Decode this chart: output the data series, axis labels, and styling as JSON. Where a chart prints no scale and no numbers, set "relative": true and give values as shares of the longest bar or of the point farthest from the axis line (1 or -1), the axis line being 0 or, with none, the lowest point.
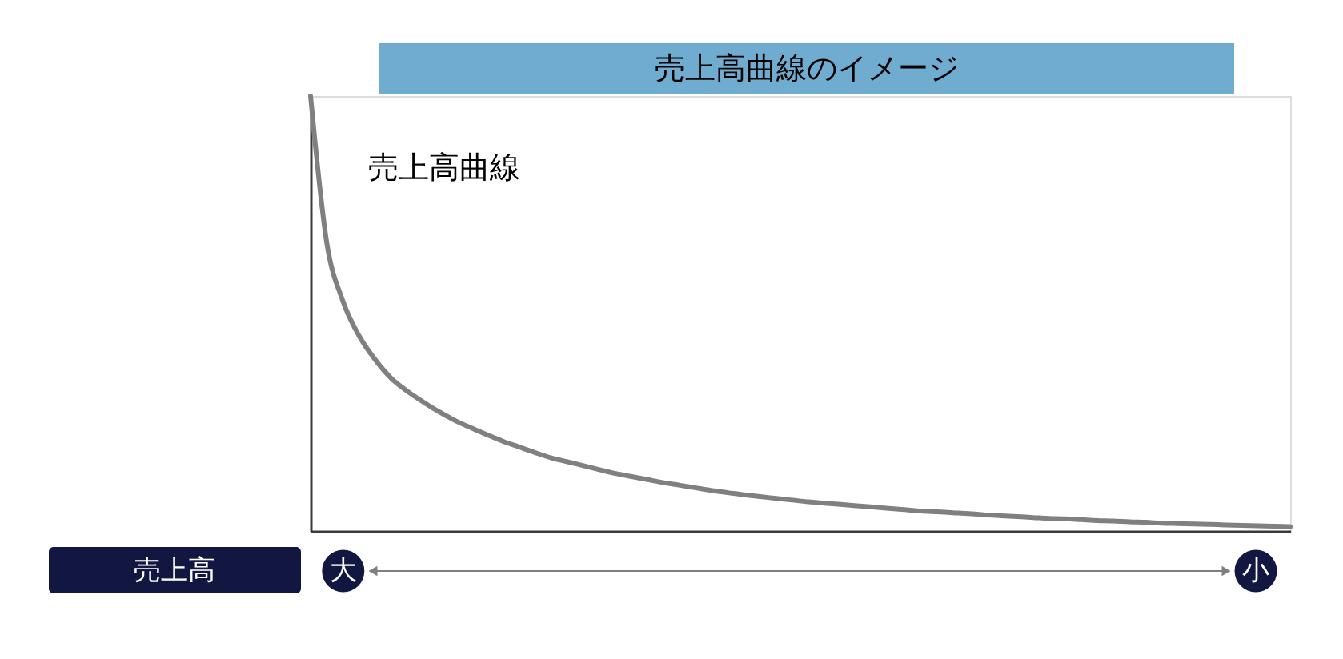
{
  "chart_data": {
    "type": "line",
    "title": "売上高曲線のイメージ",
    "xlabel": "売上高",
    "annotations": [
      "大",
      "小"
    ],
    "relative": true,
    "categories": [
      null,
      null,
      null,
      null,
      null,
      null,
      null,
      null,
      null,
      null,
      null,
      null,
      null,
      null,
      null,
      null,
      null,
      null,
      null,
      null,
      null,
      null,
      null,
      null,
      null,
      null,
      null,
      null,
      null,
      null,
      null,
      null,
      null,
      null,
      null,
      null,
      null,
      null,
      null,
      null,
      null,
      null,
      null,
      null,
      null,
      null,
      null,
      null,
      null,
      null,
      null,
      null,
      null,
      null,
      null,
      null,
      null,
      null,
      null,
      null,
      null,
      null
    ],
    "series": [
      {
        "name": "売上高曲線",
        "color": "#808080",
        "values": [
          1.0,
          0.665,
          0.53,
          0.45,
          0.395,
          0.352,
          0.322,
          0.297,
          0.274,
          0.254,
          0.237,
          0.221,
          0.206,
          0.193,
          0.18,
          0.168,
          0.159,
          0.15,
          0.141,
          0.132,
          0.125,
          0.118,
          0.111,
          0.105,
          0.099,
          0.093,
          0.088,
          0.083,
          0.079,
          0.075,
          0.071,
          0.067,
          0.064,
          0.061,
          0.058,
          0.055,
          0.052,
          0.049,
          0.046,
          0.044,
          0.042,
          0.04,
          0.037,
          0.035,
          0.033,
          0.031,
          0.029,
          0.028,
          0.026,
          0.024,
          0.023,
          0.021,
          0.02,
          0.018,
          0.017,
          0.016,
          0.015,
          0.014,
          0.013,
          0.012,
          0.011,
          0.01
        ]
      }
    ]
  }
}
